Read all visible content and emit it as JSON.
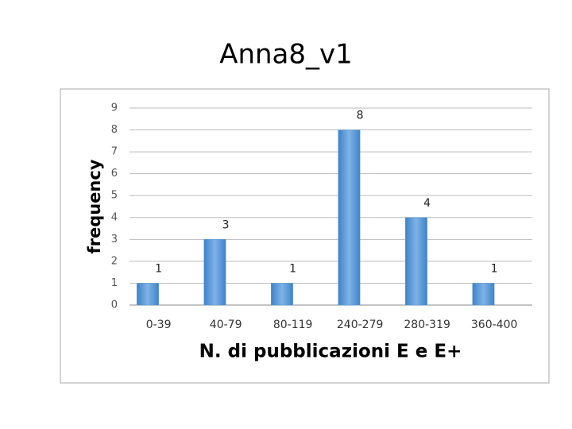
{
  "chart_data": {
    "type": "bar",
    "title": "Anna8_v1",
    "x_label": "N. di pubblicazioni  E e E+",
    "y_label": "frequency",
    "categories": [
      "0-39",
      "40-79",
      "80-119",
      "240-279",
      "280-319",
      "360-400"
    ],
    "values": [
      1,
      3,
      1,
      8,
      4,
      1
    ],
    "color": "#5b9bd5",
    "ylim": [
      0,
      9
    ],
    "yticks": [
      0,
      1,
      2,
      3,
      4,
      5,
      6,
      7,
      8,
      9
    ],
    "grid": true
  }
}
